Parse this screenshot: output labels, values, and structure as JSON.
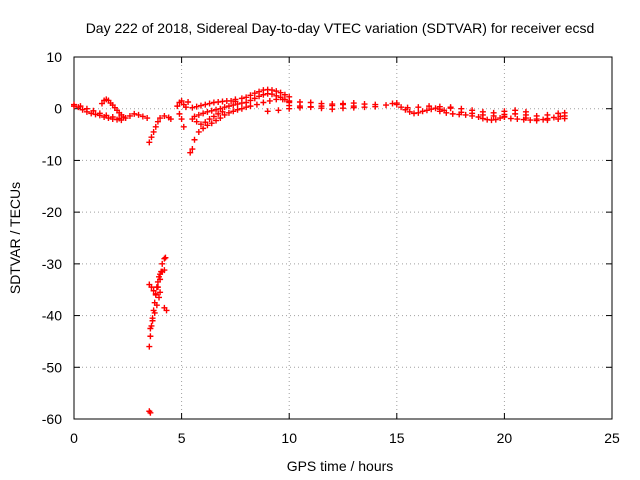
{
  "chart_data": {
    "type": "scatter",
    "title": "Day 222 of 2018, Sidereal Day-to-day VTEC variation (SDTVAR) for receiver ecsd",
    "xlabel": "GPS time / hours",
    "ylabel": "SDTVAR / TECUs",
    "xlim": [
      0,
      25
    ],
    "ylim": [
      -60,
      10
    ],
    "xticks": [
      "0",
      "5",
      "10",
      "15",
      "20",
      "25"
    ],
    "yticks": [
      "10",
      "0",
      "-10",
      "-20",
      "-30",
      "-40",
      "-50",
      "-60"
    ],
    "grid": true,
    "marker": "+",
    "color": "#ff0000",
    "series": [
      {
        "name": "ecsd",
        "points": [
          [
            0.0,
            0.5
          ],
          [
            0.2,
            0.3
          ],
          [
            0.4,
            -0.2
          ],
          [
            0.6,
            -0.6
          ],
          [
            0.8,
            -0.9
          ],
          [
            1.0,
            -1.1
          ],
          [
            1.2,
            -1.3
          ],
          [
            1.4,
            -1.6
          ],
          [
            1.6,
            -1.8
          ],
          [
            1.8,
            -2.0
          ],
          [
            2.0,
            -2.1
          ],
          [
            2.2,
            -2.2
          ],
          [
            2.4,
            -1.8
          ],
          [
            2.6,
            -1.4
          ],
          [
            2.8,
            -1.0
          ],
          [
            3.0,
            -1.2
          ],
          [
            3.2,
            -1.5
          ],
          [
            3.4,
            -1.8
          ],
          [
            0.0,
            0.8
          ],
          [
            0.3,
            0.5
          ],
          [
            0.6,
            0.0
          ],
          [
            0.9,
            -0.4
          ],
          [
            1.2,
            -0.9
          ],
          [
            1.5,
            -1.3
          ],
          [
            1.8,
            -1.6
          ],
          [
            2.1,
            -1.9
          ],
          [
            1.3,
            1.0
          ],
          [
            1.4,
            1.6
          ],
          [
            1.5,
            1.8
          ],
          [
            1.6,
            1.6
          ],
          [
            1.7,
            1.1
          ],
          [
            1.8,
            0.7
          ],
          [
            1.9,
            0.2
          ],
          [
            2.0,
            -0.3
          ],
          [
            2.1,
            -0.8
          ],
          [
            2.2,
            -1.2
          ],
          [
            2.3,
            -1.6
          ],
          [
            3.5,
            -6.5
          ],
          [
            3.6,
            -5.5
          ],
          [
            3.7,
            -4.5
          ],
          [
            3.8,
            -3.5
          ],
          [
            3.9,
            -2.5
          ],
          [
            4.0,
            -1.8
          ],
          [
            4.2,
            -1.4
          ],
          [
            4.4,
            -1.7
          ],
          [
            4.5,
            -2.0
          ],
          [
            3.5,
            -46.0
          ],
          [
            3.55,
            -44.0
          ],
          [
            3.6,
            -42.0
          ],
          [
            3.65,
            -40.5
          ],
          [
            3.7,
            -39.0
          ],
          [
            3.75,
            -37.5
          ],
          [
            3.8,
            -36.0
          ],
          [
            3.85,
            -34.5
          ],
          [
            3.9,
            -33.5
          ],
          [
            3.95,
            -32.5
          ],
          [
            4.0,
            -32.0
          ],
          [
            4.1,
            -31.5
          ],
          [
            4.2,
            -31.2
          ],
          [
            3.5,
            -34.0
          ],
          [
            3.6,
            -34.5
          ],
          [
            3.7,
            -35.2
          ],
          [
            3.8,
            -35.8
          ],
          [
            3.9,
            -34.5
          ],
          [
            4.0,
            -33.0
          ],
          [
            4.05,
            -31.5
          ],
          [
            3.55,
            -42.5
          ],
          [
            3.65,
            -41.0
          ],
          [
            3.75,
            -39.5
          ],
          [
            3.85,
            -38.0
          ],
          [
            3.95,
            -36.5
          ],
          [
            4.0,
            -35.5
          ],
          [
            4.1,
            -30.0
          ],
          [
            4.2,
            -29.0
          ],
          [
            4.25,
            -28.8
          ],
          [
            4.2,
            -38.5
          ],
          [
            4.3,
            -39.0
          ],
          [
            3.5,
            -58.5
          ],
          [
            3.55,
            -58.8
          ],
          [
            4.8,
            0.5
          ],
          [
            4.9,
            1.2
          ],
          [
            5.0,
            1.5
          ],
          [
            5.1,
            0.8
          ],
          [
            5.2,
            0.3
          ],
          [
            5.3,
            1.3
          ],
          [
            4.9,
            -1.0
          ],
          [
            5.0,
            -2.0
          ],
          [
            5.1,
            -3.5
          ],
          [
            5.4,
            -8.5
          ],
          [
            5.5,
            -7.8
          ],
          [
            5.6,
            -6.0
          ],
          [
            5.8,
            -4.5
          ],
          [
            6.0,
            -3.8
          ],
          [
            6.2,
            -3.2
          ],
          [
            6.4,
            -2.8
          ],
          [
            6.6,
            -2.3
          ],
          [
            6.8,
            -1.8
          ],
          [
            7.0,
            -1.2
          ],
          [
            7.2,
            -0.8
          ],
          [
            7.4,
            -0.5
          ],
          [
            7.6,
            -0.2
          ],
          [
            7.8,
            0.0
          ],
          [
            8.0,
            0.3
          ],
          [
            5.6,
            -1.5
          ],
          [
            5.8,
            -1.2
          ],
          [
            6.0,
            -0.9
          ],
          [
            6.2,
            -0.6
          ],
          [
            6.4,
            -0.4
          ],
          [
            6.6,
            -0.2
          ],
          [
            6.8,
            0.0
          ],
          [
            7.0,
            0.3
          ],
          [
            7.2,
            0.5
          ],
          [
            7.4,
            0.7
          ],
          [
            7.6,
            0.9
          ],
          [
            7.8,
            1.1
          ],
          [
            5.5,
            0.2
          ],
          [
            5.7,
            0.4
          ],
          [
            5.9,
            0.6
          ],
          [
            6.1,
            0.8
          ],
          [
            6.3,
            1.0
          ],
          [
            6.5,
            1.2
          ],
          [
            6.7,
            1.3
          ],
          [
            6.9,
            1.4
          ],
          [
            7.1,
            1.5
          ],
          [
            7.3,
            1.5
          ],
          [
            7.5,
            1.4
          ],
          [
            5.5,
            -2.0
          ],
          [
            5.7,
            -2.5
          ],
          [
            5.9,
            -3.0
          ],
          [
            6.1,
            -2.6
          ],
          [
            6.3,
            -2.0
          ],
          [
            6.5,
            -1.5
          ],
          [
            6.7,
            -1.0
          ],
          [
            6.9,
            -0.6
          ],
          [
            7.5,
            1.8
          ],
          [
            7.8,
            2.0
          ],
          [
            8.0,
            2.2
          ],
          [
            8.2,
            2.6
          ],
          [
            8.4,
            3.0
          ],
          [
            8.6,
            3.3
          ],
          [
            8.8,
            3.6
          ],
          [
            9.0,
            3.7
          ],
          [
            9.2,
            3.6
          ],
          [
            9.4,
            3.4
          ],
          [
            9.6,
            3.1
          ],
          [
            9.8,
            2.7
          ],
          [
            10.0,
            2.3
          ],
          [
            8.0,
            1.2
          ],
          [
            8.2,
            1.6
          ],
          [
            8.4,
            2.0
          ],
          [
            8.6,
            2.4
          ],
          [
            8.8,
            2.7
          ],
          [
            9.0,
            2.9
          ],
          [
            9.2,
            2.8
          ],
          [
            9.4,
            2.5
          ],
          [
            9.6,
            2.2
          ],
          [
            9.8,
            1.8
          ],
          [
            10.0,
            1.4
          ],
          [
            8.2,
            0.5
          ],
          [
            8.5,
            0.8
          ],
          [
            8.8,
            1.2
          ],
          [
            9.1,
            1.5
          ],
          [
            9.4,
            1.8
          ],
          [
            9.7,
            1.8
          ],
          [
            10.0,
            1.5
          ],
          [
            9.0,
            -0.5
          ],
          [
            9.5,
            -0.3
          ],
          [
            10.0,
            0.0
          ],
          [
            10.5,
            0.2
          ],
          [
            11.0,
            0.4
          ],
          [
            11.5,
            0.5
          ],
          [
            12.0,
            0.6
          ],
          [
            12.5,
            0.8
          ],
          [
            13.0,
            0.5
          ],
          [
            13.5,
            0.3
          ],
          [
            14.0,
            0.4
          ],
          [
            14.5,
            0.7
          ],
          [
            14.8,
            1.0
          ],
          [
            15.0,
            1.1
          ],
          [
            10.0,
            1.2
          ],
          [
            10.5,
            1.3
          ],
          [
            11.0,
            1.2
          ],
          [
            11.5,
            1.0
          ],
          [
            12.0,
            0.9
          ],
          [
            12.5,
            1.0
          ],
          [
            13.0,
            1.1
          ],
          [
            13.5,
            0.9
          ],
          [
            14.0,
            0.8
          ],
          [
            10.0,
            0.6
          ],
          [
            10.5,
            0.5
          ],
          [
            11.0,
            0.3
          ],
          [
            11.5,
            0.1
          ],
          [
            12.0,
            -0.1
          ],
          [
            12.5,
            0.1
          ],
          [
            13.0,
            0.2
          ],
          [
            15.0,
            0.8
          ],
          [
            15.2,
            0.3
          ],
          [
            15.4,
            -0.2
          ],
          [
            15.6,
            -0.6
          ],
          [
            15.8,
            -0.9
          ],
          [
            16.0,
            -0.8
          ],
          [
            16.2,
            -0.5
          ],
          [
            16.4,
            -0.3
          ],
          [
            16.6,
            -0.1
          ],
          [
            16.8,
            0.1
          ],
          [
            17.0,
            -0.1
          ],
          [
            17.2,
            -0.3
          ],
          [
            15.5,
            0.2
          ],
          [
            16.0,
            0.3
          ],
          [
            16.5,
            0.5
          ],
          [
            17.0,
            0.4
          ],
          [
            17.5,
            0.1
          ],
          [
            17.0,
            -0.5
          ],
          [
            17.3,
            -0.8
          ],
          [
            17.6,
            -1.0
          ],
          [
            17.9,
            -1.1
          ],
          [
            18.2,
            -1.2
          ],
          [
            18.5,
            -1.4
          ],
          [
            18.8,
            -1.6
          ],
          [
            19.0,
            -1.9
          ],
          [
            19.2,
            -2.1
          ],
          [
            19.4,
            -2.2
          ],
          [
            19.6,
            -2.1
          ],
          [
            19.8,
            -1.8
          ],
          [
            20.0,
            -1.5
          ],
          [
            17.5,
            0.3
          ],
          [
            18.0,
            0.0
          ],
          [
            18.5,
            -0.3
          ],
          [
            19.0,
            -0.6
          ],
          [
            19.5,
            -0.8
          ],
          [
            20.0,
            -0.5
          ],
          [
            20.5,
            -0.3
          ],
          [
            21.0,
            -0.6
          ],
          [
            18.0,
            -0.7
          ],
          [
            18.5,
            -0.9
          ],
          [
            19.0,
            -1.2
          ],
          [
            19.5,
            -1.4
          ],
          [
            20.0,
            -1.1
          ],
          [
            20.0,
            -1.6
          ],
          [
            20.3,
            -1.9
          ],
          [
            20.6,
            -2.0
          ],
          [
            20.9,
            -2.1
          ],
          [
            21.2,
            -2.2
          ],
          [
            21.5,
            -2.3
          ],
          [
            21.8,
            -2.1
          ],
          [
            22.0,
            -1.9
          ],
          [
            22.3,
            -1.7
          ],
          [
            22.6,
            -1.5
          ],
          [
            22.8,
            -1.4
          ],
          [
            20.5,
            -1.0
          ],
          [
            21.0,
            -1.2
          ],
          [
            21.5,
            -1.4
          ],
          [
            22.0,
            -1.2
          ],
          [
            22.5,
            -0.9
          ],
          [
            22.8,
            -0.8
          ],
          [
            21.0,
            -1.8
          ],
          [
            21.5,
            -2.0
          ],
          [
            22.0,
            -2.2
          ],
          [
            22.5,
            -2.0
          ],
          [
            22.8,
            -1.9
          ]
        ]
      }
    ]
  }
}
